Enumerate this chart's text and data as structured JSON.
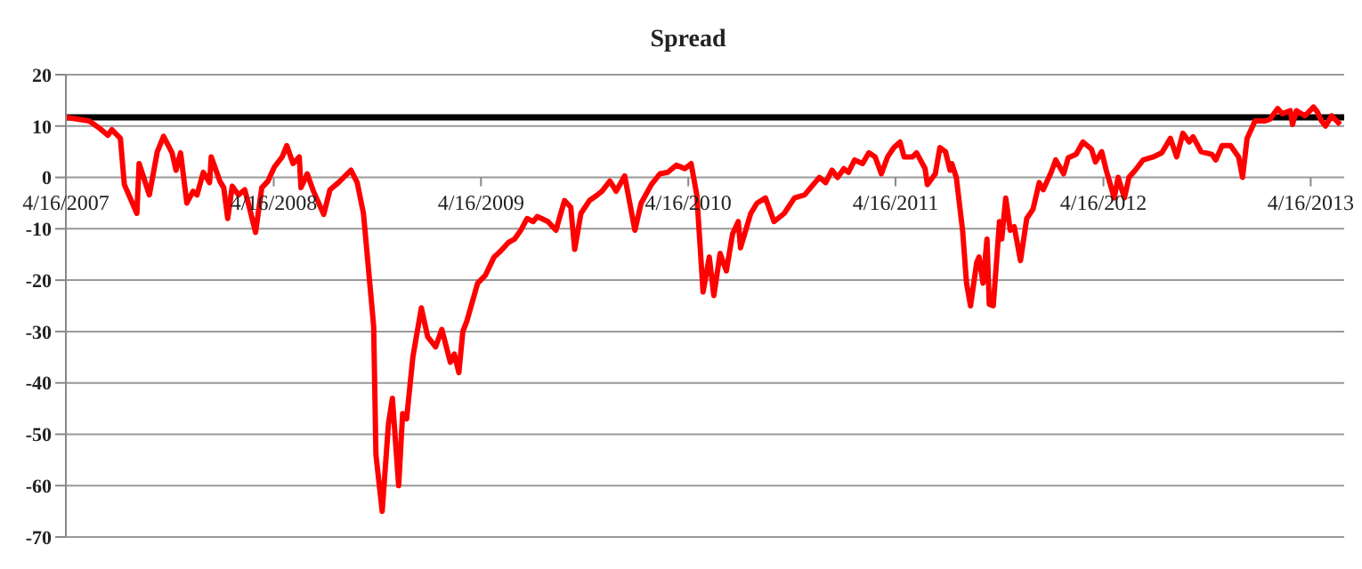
{
  "chart_data": {
    "type": "line",
    "title": "Spread",
    "x": [
      "2007-04-16",
      "2007-05-27",
      "2007-06-14",
      "2007-06-29",
      "2007-07-06",
      "2007-07-21",
      "2007-07-28",
      "2007-08-19",
      "2007-08-23",
      "2007-09-10",
      "2007-09-24",
      "2007-10-05",
      "2007-10-20",
      "2007-10-27",
      "2007-11-04",
      "2007-11-15",
      "2007-11-26",
      "2007-12-03",
      "2007-12-14",
      "2007-12-25",
      "2007-12-28",
      "2008-01-12",
      "2008-01-19",
      "2008-01-26",
      "2008-02-03",
      "2008-02-14",
      "2008-02-25",
      "2008-03-04",
      "2008-03-15",
      "2008-03-26",
      "2008-04-06",
      "2008-04-17",
      "2008-05-01",
      "2008-05-09",
      "2008-05-20",
      "2008-05-31",
      "2008-06-03",
      "2008-06-14",
      "2008-06-25",
      "2008-07-13",
      "2008-07-24",
      "2008-08-08",
      "2008-08-30",
      "2008-09-10",
      "2008-09-21",
      "2008-09-28",
      "2008-10-09",
      "2008-10-13",
      "2008-10-24",
      "2008-11-04",
      "2008-11-11",
      "2008-11-22",
      "2008-11-29",
      "2008-12-06",
      "2008-12-17",
      "2009-01-01",
      "2009-01-12",
      "2009-01-26",
      "2009-02-06",
      "2009-02-21",
      "2009-02-28",
      "2009-03-08",
      "2009-03-15",
      "2009-03-22",
      "2009-04-10",
      "2009-04-24",
      "2009-05-09",
      "2009-05-20",
      "2009-06-03",
      "2009-06-14",
      "2009-06-25",
      "2009-07-06",
      "2009-07-17",
      "2009-07-24",
      "2009-08-12",
      "2009-08-26",
      "2009-09-10",
      "2009-09-21",
      "2009-09-28",
      "2009-10-09",
      "2009-10-24",
      "2009-11-07",
      "2009-11-15",
      "2009-11-29",
      "2009-12-10",
      "2009-12-25",
      "2010-01-12",
      "2010-01-23",
      "2010-02-10",
      "2010-02-25",
      "2010-03-11",
      "2010-03-26",
      "2010-04-10",
      "2010-04-21",
      "2010-05-01",
      "2010-05-12",
      "2010-05-23",
      "2010-05-31",
      "2010-06-11",
      "2010-06-22",
      "2010-07-03",
      "2010-07-13",
      "2010-07-17",
      "2010-08-04",
      "2010-08-15",
      "2010-08-30",
      "2010-09-14",
      "2010-10-02",
      "2010-10-20",
      "2010-11-07",
      "2010-11-22",
      "2010-12-03",
      "2010-12-14",
      "2010-12-25",
      "2011-01-04",
      "2011-01-15",
      "2011-01-23",
      "2011-02-03",
      "2011-02-17",
      "2011-02-28",
      "2011-03-11",
      "2011-03-22",
      "2011-04-02",
      "2011-04-13",
      "2011-04-24",
      "2011-05-01",
      "2011-05-16",
      "2011-05-23",
      "2011-06-07",
      "2011-06-11",
      "2011-06-25",
      "2011-07-03",
      "2011-07-13",
      "2011-07-21",
      "2011-07-24",
      "2011-08-01",
      "2011-08-12",
      "2011-08-19",
      "2011-08-26",
      "2011-09-06",
      "2011-09-10",
      "2011-09-17",
      "2011-09-24",
      "2011-09-28",
      "2011-10-05",
      "2011-10-16",
      "2011-10-20",
      "2011-10-27",
      "2011-11-04",
      "2011-11-11",
      "2011-11-22",
      "2011-12-03",
      "2011-12-14",
      "2011-12-25",
      "2012-01-01",
      "2012-01-15",
      "2012-01-23",
      "2012-02-06",
      "2012-02-14",
      "2012-02-28",
      "2012-03-11",
      "2012-03-26",
      "2012-04-02",
      "2012-04-13",
      "2012-04-21",
      "2012-05-05",
      "2012-05-12",
      "2012-05-23",
      "2012-05-31",
      "2012-06-11",
      "2012-06-25",
      "2012-07-13",
      "2012-07-28",
      "2012-08-12",
      "2012-08-23",
      "2012-09-03",
      "2012-09-14",
      "2012-09-21",
      "2012-10-05",
      "2012-10-24",
      "2012-10-31",
      "2012-11-11",
      "2012-11-26",
      "2012-12-10",
      "2012-12-17",
      "2012-12-25",
      "2013-01-08",
      "2013-01-26",
      "2013-02-03",
      "2013-02-17",
      "2013-02-25",
      "2013-03-11",
      "2013-03-15",
      "2013-03-22",
      "2013-04-06",
      "2013-04-21",
      "2013-04-28",
      "2013-05-05",
      "2013-05-12",
      "2013-05-23",
      "2013-06-07"
    ],
    "series": [
      {
        "color": "#ff0000",
        "values": [
          11.7,
          11,
          9.6,
          8.2,
          9.3,
          7.6,
          -1.4,
          -7,
          2.7,
          -3.4,
          5,
          8,
          4.8,
          1.4,
          4.8,
          -5,
          -2.7,
          -3.4,
          1,
          -1,
          4,
          -0.7,
          -2,
          -8,
          -1.7,
          -3.4,
          -2.4,
          -5.8,
          -10.7,
          -2,
          -0.7,
          2,
          4,
          6.2,
          2.7,
          4,
          -2,
          0.7,
          -2.7,
          -7.2,
          -2.4,
          -1,
          1.4,
          -1,
          -7,
          -15.5,
          -29,
          -54,
          -65,
          -48,
          -43,
          -60,
          -46,
          -47,
          -35,
          -25.4,
          -31,
          -33,
          -29.6,
          -36,
          -34.4,
          -38,
          -30,
          -28,
          -20.6,
          -19,
          -15.5,
          -14.4,
          -12.7,
          -12,
          -10.3,
          -8,
          -8.6,
          -7.6,
          -8.6,
          -10.3,
          -4.5,
          -5.8,
          -14,
          -7,
          -4.5,
          -3.4,
          -2.7,
          -0.7,
          -2.7,
          0.3,
          -10.3,
          -5,
          -1.4,
          0.7,
          1,
          2.4,
          1.7,
          2.7,
          -3.4,
          -22.3,
          -15.5,
          -23,
          -14.8,
          -18.2,
          -11,
          -8.6,
          -13.7,
          -7,
          -5,
          -4,
          -8.6,
          -7,
          -4,
          -3.4,
          -1.4,
          0,
          -1,
          1.4,
          0,
          1.7,
          1,
          3.4,
          2.7,
          4.8,
          4,
          0.7,
          4,
          5.8,
          6.9,
          4,
          4,
          4.8,
          1.7,
          -1.4,
          0.7,
          5.8,
          5,
          1.4,
          2.7,
          0,
          -10.3,
          -20.6,
          -25,
          -16.5,
          -15.5,
          -20.6,
          -12,
          -24.7,
          -25,
          -8.6,
          -12,
          -4,
          -10.3,
          -9.6,
          -16.2,
          -8,
          -6.2,
          -1,
          -2.4,
          1,
          3.4,
          0.7,
          3.8,
          4.5,
          6.9,
          5.5,
          3,
          5,
          1.4,
          -4,
          0,
          -4,
          0,
          1.4,
          3.4,
          4,
          4.8,
          7.6,
          4,
          8.6,
          6.9,
          7.9,
          5,
          4.5,
          3.4,
          6.2,
          6.2,
          4,
          0,
          7.6,
          11,
          11,
          11.3,
          13.4,
          12.4,
          13,
          10.3,
          13,
          12,
          13.7,
          12.7,
          11,
          10,
          12,
          10.3
        ]
      }
    ],
    "xlim": [
      "2007-04-16",
      "2013-06-14"
    ],
    "xticks": [
      {
        "value": "2007-04-16",
        "label": "4/16/2007"
      },
      {
        "value": "2008-04-16",
        "label": "4/16/2008"
      },
      {
        "value": "2009-04-16",
        "label": "4/16/2009"
      },
      {
        "value": "2010-04-16",
        "label": "4/16/2010"
      },
      {
        "value": "2011-04-16",
        "label": "4/16/2011"
      },
      {
        "value": "2012-04-16",
        "label": "4/16/2012"
      },
      {
        "value": "2013-04-16",
        "label": "4/16/2013"
      }
    ],
    "ylim": [
      -70,
      20
    ],
    "yticks": [
      -70,
      -60,
      -50,
      -40,
      -30,
      -20,
      -10,
      0,
      10,
      20
    ],
    "grid": "y",
    "marker": "none",
    "line_style": "solid",
    "ref_lines": [
      {
        "axis": "y",
        "value": 11.7,
        "color": "#000000"
      }
    ]
  }
}
